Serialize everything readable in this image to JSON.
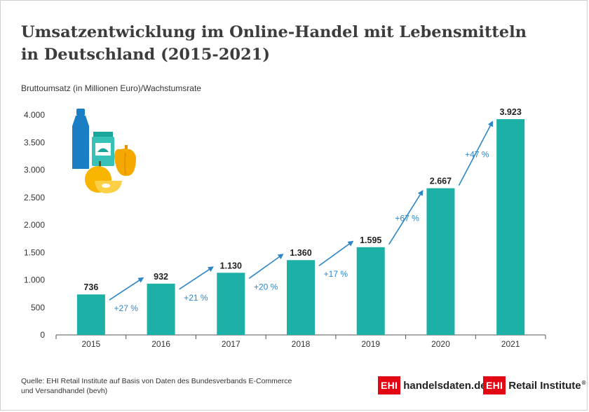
{
  "title": {
    "line1": "Umsatzentwicklung im Online-Handel mit Lebensmitteln",
    "line2": "in Deutschland (2015-2021)"
  },
  "subtitle": "Bruttoumsatz (in Millionen Euro)/Wachstumsrate",
  "chart_data": {
    "type": "bar",
    "title": "Umsatzentwicklung im Online-Handel mit Lebensmitteln in Deutschland (2015-2021)",
    "ylabel": "Bruttoumsatz (in Millionen Euro)/Wachstumsrate",
    "xlabel": "",
    "categories": [
      "2015",
      "2016",
      "2017",
      "2018",
      "2019",
      "2020",
      "2021"
    ],
    "values": [
      736,
      932,
      1130,
      1360,
      1595,
      2667,
      3923
    ],
    "value_labels": [
      "736",
      "932",
      "1.130",
      "1.360",
      "1.595",
      "2.667",
      "3.923"
    ],
    "growth_labels": [
      "+27 %",
      "+21 %",
      "+20 %",
      "+17 %",
      "+67 %",
      "+47 %"
    ],
    "yticks": [
      0,
      500,
      1000,
      1500,
      2000,
      2500,
      3000,
      3500,
      4000
    ],
    "ytick_labels": [
      "0",
      "500",
      "1.000",
      "1.500",
      "2.000",
      "2.500",
      "3.000",
      "3.500",
      "4.000"
    ],
    "ylim": [
      0,
      4000
    ],
    "grid": false,
    "bar_color": "#1db0a6",
    "arrow_color": "#2b87c8"
  },
  "source": {
    "line1": "Quelle: EHI Retail Institute auf Basis von Daten des Bundesverbands E-Commerce",
    "line2": "und Versandhandel (bevh)"
  },
  "logos": {
    "badge": "EHI",
    "handelsdaten": "handelsdaten.de",
    "institute": "Retail Institute",
    "registered": "®"
  }
}
